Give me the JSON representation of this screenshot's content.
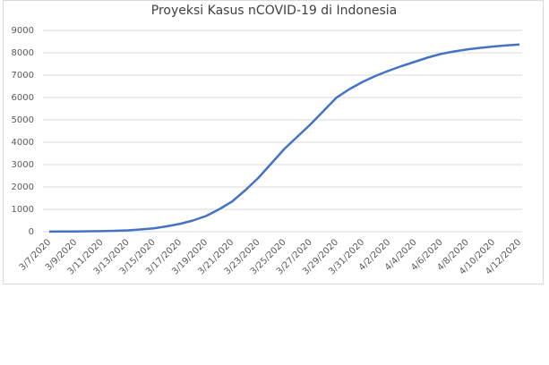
{
  "chart_data": {
    "type": "line",
    "title": "Proyeksi Kasus nCOVID-19 di Indonesia",
    "categories": [
      "3/7/2020",
      null,
      "3/9/2020",
      null,
      "3/11/2020",
      null,
      "3/13/2020",
      null,
      "3/15/2020",
      null,
      "3/17/2020",
      null,
      "3/19/2020",
      null,
      "3/21/2020",
      null,
      "3/23/2020",
      null,
      "3/25/2020",
      null,
      "3/27/2020",
      null,
      "3/29/2020",
      null,
      "3/31/2020",
      null,
      "4/2/2020",
      null,
      "4/4/2020",
      null,
      "4/6/2020",
      null,
      "4/8/2020",
      null,
      "4/10/2020",
      null,
      "4/12/2020"
    ],
    "series": [
      {
        "color": "#4472c4",
        "values": [
          5,
          8,
          12,
          18,
          27,
          40,
          60,
          100,
          150,
          240,
          350,
          500,
          700,
          1000,
          1350,
          1850,
          2400,
          3050,
          3700,
          4250,
          4800,
          5400,
          6000,
          6380,
          6700,
          6970,
          7200,
          7410,
          7600,
          7790,
          7950,
          8060,
          8150,
          8220,
          8280,
          8330,
          8370
        ]
      }
    ],
    "ylim": [
      0,
      9000
    ],
    "yticks": [
      0,
      1000,
      2000,
      3000,
      4000,
      5000,
      6000,
      7000,
      8000,
      9000
    ],
    "grid": true
  }
}
